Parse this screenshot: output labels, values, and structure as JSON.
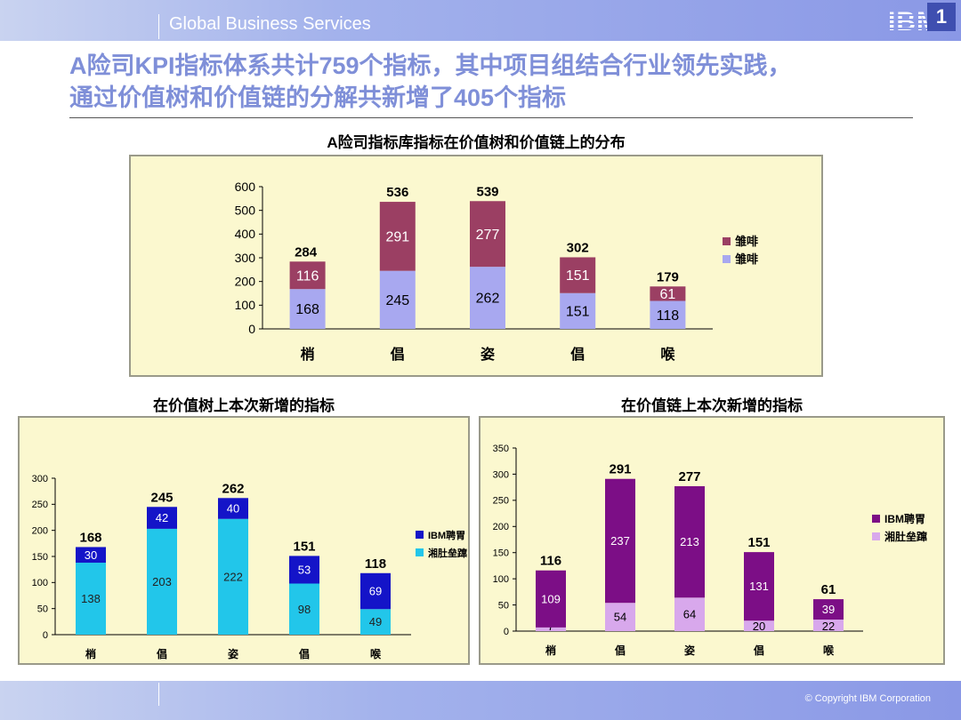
{
  "header": {
    "brand": "Global Business Services",
    "logo_text": "IBM",
    "page_number": "1"
  },
  "headline": {
    "line1": "A险司KPI指标体系共计759个指标，其中项目组结合行业领先实践，",
    "line2": "通过价值树和价值链的分解共新增了405个指标"
  },
  "footer": {
    "copyright": "© Copyright IBM Corporation"
  },
  "colors": {
    "accent": "#7f8fd8",
    "panel_bg": "#fbf8cf"
  },
  "chart_data": [
    {
      "type": "bar",
      "stacked": true,
      "title": "A险司指标库指标在价值树和价值链上的分布",
      "categories": [
        "梢",
        "倡",
        "姿",
        "倡",
        "喉"
      ],
      "series": [
        {
          "name": "雏啡",
          "color": "#a8a8f0",
          "values": [
            168,
            245,
            262,
            151,
            118
          ]
        },
        {
          "name": "雏啡",
          "color": "#9b3f63",
          "values": [
            116,
            291,
            277,
            151,
            61
          ]
        }
      ],
      "totals": [
        284,
        536,
        539,
        302,
        179
      ],
      "ylim": [
        0,
        600
      ],
      "yticks": [
        0,
        100,
        200,
        300,
        400,
        500,
        600
      ],
      "legend": "right"
    },
    {
      "type": "bar",
      "stacked": true,
      "title": "在价值树上本次新增的指标",
      "categories": [
        "梢",
        "倡",
        "姿",
        "倡",
        "喉"
      ],
      "series": [
        {
          "name": "湘肚垒蹿",
          "color": "#22c6ea",
          "values": [
            138,
            203,
            222,
            98,
            49
          ]
        },
        {
          "name": "IBM聘胃",
          "color": "#1414c8",
          "values": [
            30,
            42,
            40,
            53,
            69
          ]
        }
      ],
      "totals": [
        168,
        245,
        262,
        151,
        118
      ],
      "ylim": [
        0,
        300
      ],
      "yticks": [
        0,
        50,
        100,
        150,
        200,
        250,
        300
      ],
      "legend": "right"
    },
    {
      "type": "bar",
      "stacked": true,
      "title": "在价值链上本次新增的指标",
      "categories": [
        "梢",
        "倡",
        "姿",
        "倡",
        "喉"
      ],
      "series": [
        {
          "name": "湘肚垒蹿",
          "color": "#d8a8ec",
          "values": [
            7,
            54,
            64,
            20,
            22
          ]
        },
        {
          "name": "IBM聘胃",
          "color": "#7c0e86",
          "values": [
            109,
            237,
            213,
            131,
            39
          ]
        }
      ],
      "totals": [
        116,
        291,
        277,
        151,
        61
      ],
      "ylim": [
        0,
        350
      ],
      "yticks": [
        0,
        50,
        100,
        150,
        200,
        250,
        300,
        350
      ],
      "legend": "right"
    }
  ]
}
